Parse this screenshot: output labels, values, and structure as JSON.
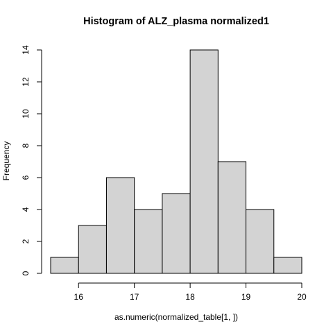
{
  "chart_data": {
    "type": "bar",
    "title": "Histogram of  ALZ_plasma normalized1",
    "xlabel": "as.numeric(normalized_table[1, ])",
    "ylabel": "Frequency",
    "bins": [
      {
        "start": 15.5,
        "end": 16.0,
        "count": 1
      },
      {
        "start": 16.0,
        "end": 16.5,
        "count": 3
      },
      {
        "start": 16.5,
        "end": 17.0,
        "count": 6
      },
      {
        "start": 17.0,
        "end": 17.5,
        "count": 4
      },
      {
        "start": 17.5,
        "end": 18.0,
        "count": 5
      },
      {
        "start": 18.0,
        "end": 18.5,
        "count": 14
      },
      {
        "start": 18.5,
        "end": 19.0,
        "count": 7
      },
      {
        "start": 19.0,
        "end": 19.5,
        "count": 4
      },
      {
        "start": 19.5,
        "end": 20.0,
        "count": 1
      }
    ],
    "xlim": [
      15.5,
      20
    ],
    "ylim": [
      0,
      14
    ],
    "x_ticks": [
      16,
      17,
      18,
      19,
      20
    ],
    "y_ticks": [
      0,
      2,
      4,
      6,
      8,
      10,
      12,
      14
    ],
    "grid": false,
    "legend": "none"
  }
}
